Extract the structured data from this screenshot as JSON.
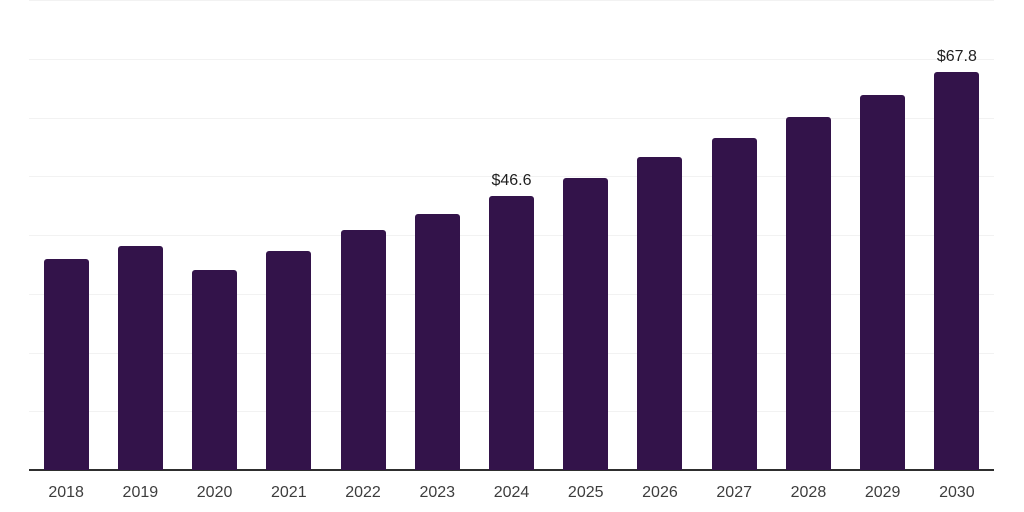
{
  "chart_data": {
    "type": "bar",
    "title": "",
    "xlabel": "",
    "ylabel": "",
    "categories": [
      "2018",
      "2019",
      "2020",
      "2021",
      "2022",
      "2023",
      "2024",
      "2025",
      "2026",
      "2027",
      "2028",
      "2029",
      "2030"
    ],
    "values": [
      35.9,
      38.1,
      34.1,
      37.3,
      40.8,
      43.5,
      46.6,
      49.7,
      53.3,
      56.5,
      60.1,
      63.9,
      67.8
    ],
    "bar_labels": [
      "",
      "",
      "",
      "",
      "",
      "",
      "$46.6",
      "",
      "",
      "",
      "",
      "",
      "$67.8"
    ],
    "ylim": [
      0,
      80
    ],
    "gridline_step": 10,
    "grid": "horizontal-only",
    "legend": "none",
    "colors": {
      "bar": "#33134a",
      "gridline": "#f2f2f2",
      "axis_line": "#2e2e2e",
      "value_label": "#1f1f1f",
      "tick_label": "#3d3d3d",
      "background": "#ffffff"
    }
  }
}
